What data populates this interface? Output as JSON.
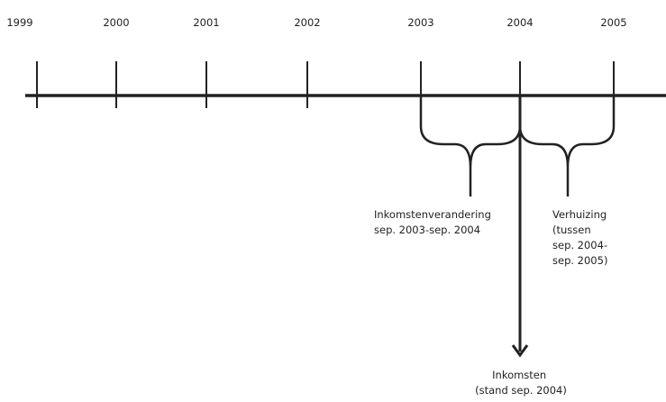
{
  "timeline": {
    "years": [
      "1999",
      "2000",
      "2001",
      "2002",
      "2003",
      "2004",
      "2005"
    ]
  },
  "annotations": [
    {
      "lines": [
        "Inkomstenverandering",
        "sep. 2003-sep. 2004"
      ]
    },
    {
      "lines": [
        "Verhuizing",
        "(tussen",
        "sep. 2004-",
        "sep. 2005)"
      ]
    },
    {
      "lines": [
        "Inkomsten",
        "(stand sep. 2004)"
      ]
    }
  ]
}
